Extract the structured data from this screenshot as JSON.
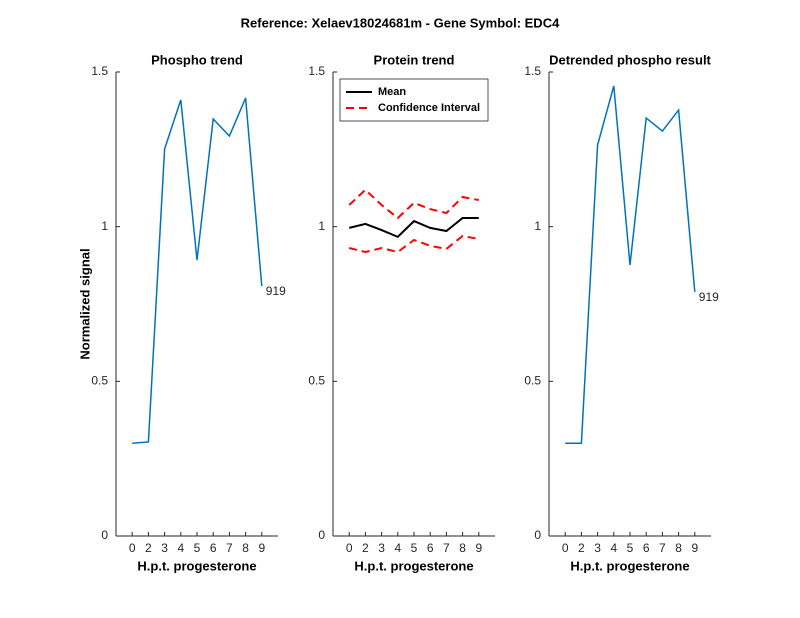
{
  "title": "Reference:  Xelaev18024681m - Gene Symbol:  EDC4",
  "chart_data": [
    {
      "type": "line",
      "title": "Phospho trend",
      "xlabel": "H.p.t. progesterone",
      "ylabel": "Normalized signal",
      "categories": [
        "0",
        "2",
        "3",
        "4",
        "5",
        "6",
        "7",
        "8",
        "9"
      ],
      "series": [
        {
          "name": "Phospho",
          "color": "#0072bd",
          "values": [
            0.3,
            0.304,
            1.251,
            1.41,
            0.892,
            1.348,
            1.293,
            1.416,
            0.808
          ]
        }
      ],
      "annotation": "919",
      "ylim": [
        0,
        1.5
      ],
      "yticks": [
        0,
        0.5,
        1,
        1.5
      ]
    },
    {
      "type": "line",
      "title": "Protein trend",
      "xlabel": "H.p.t. progesterone",
      "categories": [
        "0",
        "2",
        "3",
        "4",
        "5",
        "6",
        "7",
        "8",
        "9"
      ],
      "series": [
        {
          "name": "Mean",
          "color": "#000000",
          "values": [
            0.996,
            1.009,
            0.989,
            0.967,
            1.018,
            0.996,
            0.986,
            1.028,
            1.028
          ]
        },
        {
          "name": "Confidence Interval",
          "color": "#ff0000",
          "dashed": true,
          "values": [
            1.07,
            1.119,
            1.07,
            1.028,
            1.077,
            1.057,
            1.044,
            1.096,
            1.086
          ],
          "lower": [
            0.931,
            0.918,
            0.931,
            0.918,
            0.957,
            0.938,
            0.928,
            0.97,
            0.96
          ]
        }
      ],
      "legend": "upper left",
      "ylim": [
        0,
        1.5
      ],
      "yticks": [
        0,
        0.5,
        1,
        1.5
      ]
    },
    {
      "type": "line",
      "title": "Detrended phospho result",
      "xlabel": "H.p.t. progesterone",
      "categories": [
        "0",
        "2",
        "3",
        "4",
        "5",
        "6",
        "7",
        "8",
        "9"
      ],
      "series": [
        {
          "name": "Detrended",
          "color": "#0072bd",
          "values": [
            0.3,
            0.3,
            1.264,
            1.455,
            0.876,
            1.351,
            1.309,
            1.377,
            0.789
          ]
        }
      ],
      "annotation": "919",
      "ylim": [
        0,
        1.5
      ],
      "yticks": [
        0,
        0.5,
        1,
        1.5
      ]
    }
  ]
}
